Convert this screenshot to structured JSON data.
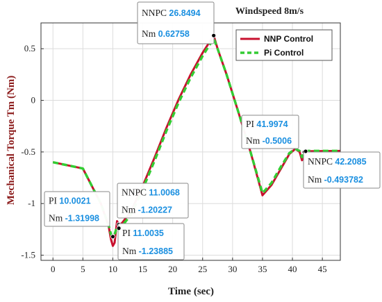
{
  "chart_data": {
    "type": "line",
    "title": "",
    "annotation_title": "Windspeed 8m/s",
    "xlabel": "Time (sec)",
    "ylabel": "Mechanical Torque Tm (Nm)",
    "xlim": [
      -2,
      48
    ],
    "ylim": [
      -1.55,
      0.75
    ],
    "xticks": [
      0,
      5,
      10,
      15,
      20,
      25,
      30,
      35,
      40,
      45
    ],
    "yticks": [
      -1.5,
      -1,
      -0.5,
      0,
      0.5
    ],
    "ytick_labels": [
      "-1.5",
      "-1",
      "-0.5",
      "0",
      "0.5"
    ],
    "grid": true,
    "legend_position": "top-right",
    "series": [
      {
        "name": "NNP Control",
        "color": "#c8102e",
        "style": "solid",
        "x": [
          0,
          5,
          8,
          9.3,
          9.7,
          10.0021,
          10.3,
          10.7,
          11.0068,
          11.5,
          13,
          15,
          17,
          19,
          21,
          23,
          25,
          26.8494,
          27.5,
          29,
          31,
          33,
          35,
          36.5,
          38,
          39.5,
          40.5,
          41.2,
          41.6,
          42,
          42.2085,
          48
        ],
        "y": [
          -0.6,
          -0.66,
          -1.0,
          -1.22,
          -1.35,
          -1.41,
          -1.38,
          -1.17,
          -1.20227,
          -1.19,
          -1.08,
          -0.83,
          -0.55,
          -0.26,
          0.01,
          0.25,
          0.46,
          0.62758,
          0.5,
          0.25,
          -0.12,
          -0.5,
          -0.92,
          -0.82,
          -0.67,
          -0.52,
          -0.47,
          -0.5,
          -0.58,
          -0.52,
          -0.493782,
          -0.49
        ]
      },
      {
        "name": "Pi Control",
        "color": "#33cc33",
        "style": "dashed",
        "x": [
          0,
          5,
          8,
          9.3,
          9.7,
          10.0021,
          10.3,
          10.7,
          11.0035,
          11.5,
          13,
          15,
          17,
          19,
          21,
          23,
          25,
          26.8494,
          27.5,
          29,
          31,
          33,
          35,
          36.5,
          38,
          39.5,
          40.5,
          41.2,
          41.6,
          41.9974,
          42.2085,
          48
        ],
        "y": [
          -0.6,
          -0.66,
          -1.0,
          -1.21,
          -1.3,
          -1.31998,
          -1.3,
          -1.22,
          -1.23885,
          -1.22,
          -1.11,
          -0.86,
          -0.58,
          -0.29,
          -0.02,
          0.22,
          0.43,
          0.6,
          0.5,
          0.25,
          -0.12,
          -0.5,
          -0.9,
          -0.8,
          -0.65,
          -0.51,
          -0.47,
          -0.49,
          -0.55,
          -0.5006,
          -0.49,
          -0.49
        ]
      }
    ],
    "datatips": [
      {
        "lines": [
          {
            "label": "NNPC",
            "value": "26.8494"
          },
          {
            "label": "Nm",
            "value": "0.62758"
          }
        ],
        "point": [
          26.8494,
          0.62758
        ]
      },
      {
        "lines": [
          {
            "label": "PI",
            "value": "41.9974"
          },
          {
            "label": "Nm",
            "value": "-0.5006"
          }
        ],
        "point": [
          41.9974,
          -0.5006
        ]
      },
      {
        "lines": [
          {
            "label": "NNPC",
            "value": "42.2085"
          },
          {
            "label": "Nm",
            "value": "-0.493782"
          }
        ],
        "point": [
          42.2085,
          -0.493782
        ]
      },
      {
        "lines": [
          {
            "label": "NNPC",
            "value": "11.0068"
          },
          {
            "label": "Nm",
            "value": "-1.20227"
          }
        ],
        "point": [
          11.0068,
          -1.20227
        ]
      },
      {
        "lines": [
          {
            "label": "PI",
            "value": "10.0021"
          },
          {
            "label": "Nm",
            "value": "-1.31998"
          }
        ],
        "point": [
          10.0021,
          -1.31998
        ]
      },
      {
        "lines": [
          {
            "label": "PI",
            "value": "11.0035"
          },
          {
            "label": "Nm",
            "value": "-1.23885"
          }
        ],
        "point": [
          11.0035,
          -1.23885
        ]
      }
    ]
  }
}
